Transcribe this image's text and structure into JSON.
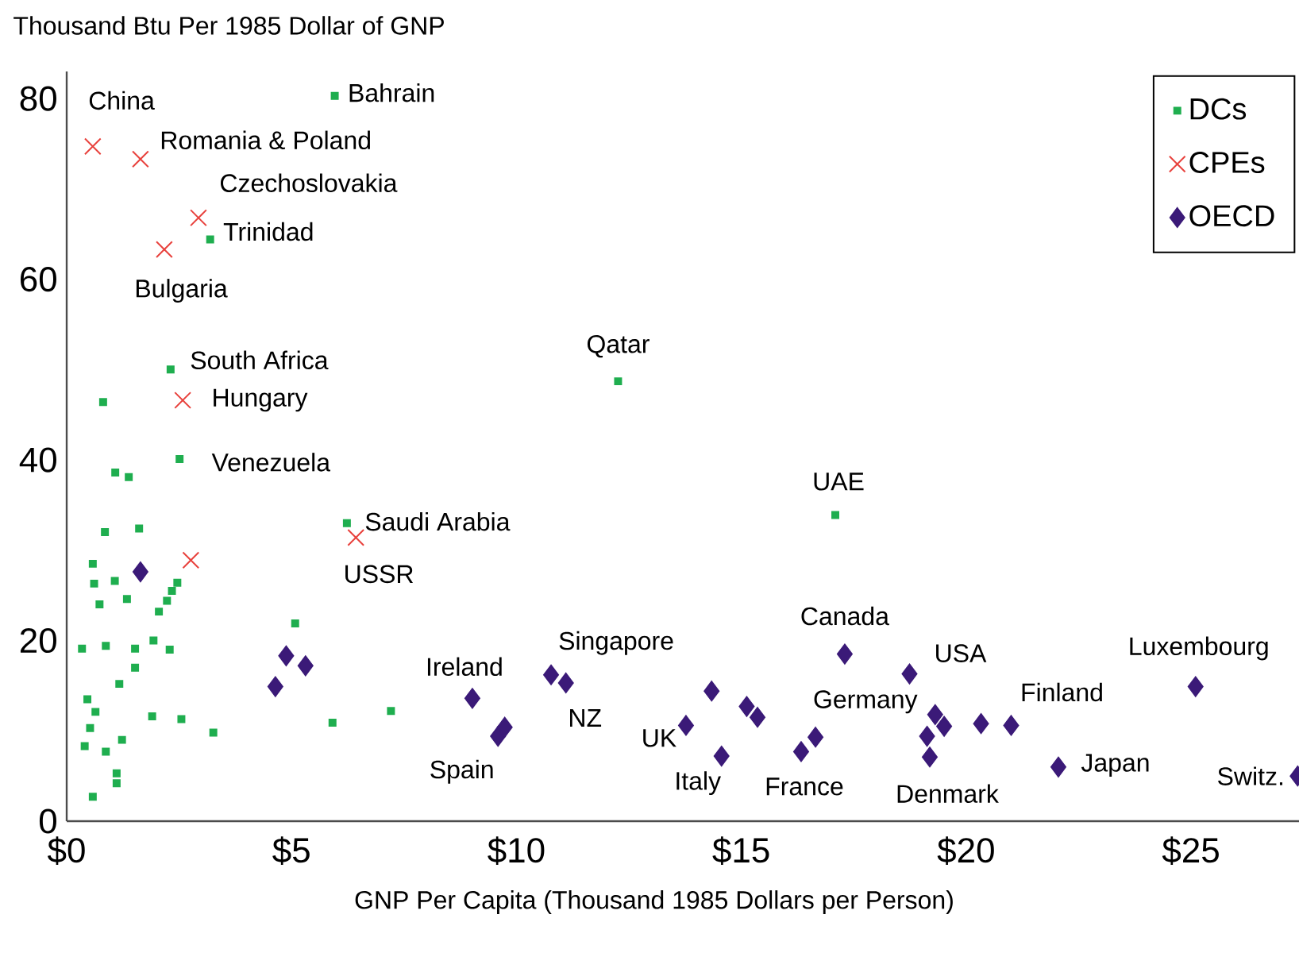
{
  "chart_data": {
    "type": "scatter",
    "ylabel": "Thousand Btu Per 1985 Dollar of GNP",
    "xlabel": "GNP Per Capita (Thousand 1985 Dollars per Person)",
    "xlim": [
      0,
      27.4
    ],
    "ylim": [
      0,
      83
    ],
    "xticks": [
      {
        "value": 0,
        "label": "$0"
      },
      {
        "value": 5,
        "label": "$5"
      },
      {
        "value": 10,
        "label": "$10"
      },
      {
        "value": 15,
        "label": "$15"
      },
      {
        "value": 20,
        "label": "$20"
      },
      {
        "value": 25,
        "label": "$25"
      }
    ],
    "yticks": [
      0,
      20,
      40,
      60,
      80
    ],
    "legend": "top right",
    "series": [
      {
        "name": "DCs",
        "color": "#1fae4f",
        "marker": "square",
        "x": [
          0.81,
          1.08,
          1.38,
          2.51,
          0.85,
          1.61,
          0.58,
          0.61,
          1.07,
          0.73,
          1.34,
          2.46,
          2.34,
          2.23,
          2.05,
          0.34,
          0.87,
          1.52,
          1.93,
          2.29,
          1.52,
          1.17,
          0.46,
          0.64,
          0.52,
          0.4,
          0.87,
          1.23,
          1.11,
          1.11,
          0.58,
          1.9,
          2.55,
          3.26,
          5.08,
          5.91,
          7.21,
          6.23,
          5.96,
          3.19,
          2.31,
          12.26,
          17.09
        ],
        "values": [
          46.4,
          38.6,
          38.1,
          40.1,
          32.0,
          32.4,
          28.5,
          26.3,
          26.6,
          24.0,
          24.6,
          26.4,
          25.5,
          24.4,
          23.2,
          19.1,
          19.4,
          19.1,
          20.0,
          19.0,
          17.0,
          15.2,
          13.5,
          12.1,
          10.3,
          8.3,
          7.7,
          9.0,
          5.3,
          4.2,
          2.7,
          11.6,
          11.3,
          9.8,
          21.9,
          10.9,
          12.2,
          33.0,
          80.3,
          64.4,
          50.0,
          48.7,
          33.9
        ]
      },
      {
        "name": "CPEs",
        "color": "#e8413c",
        "marker": "cross",
        "x": [
          0.58,
          1.64,
          2.93,
          2.17,
          2.58,
          2.76,
          6.43
        ],
        "values": [
          74.7,
          73.3,
          66.8,
          63.3,
          46.6,
          28.9,
          31.4
        ]
      },
      {
        "name": "OECD",
        "color": "#3b1a78",
        "marker": "diamond",
        "x": [
          1.64,
          4.64,
          4.88,
          5.31,
          9.02,
          9.59,
          9.74,
          10.77,
          11.1,
          13.77,
          14.34,
          14.56,
          15.12,
          15.36,
          16.33,
          16.65,
          17.3,
          18.74,
          19.31,
          19.51,
          19.13,
          19.19,
          20.33,
          21.0,
          22.05,
          25.1,
          27.37
        ],
        "values": [
          27.6,
          14.9,
          18.3,
          17.2,
          13.6,
          9.4,
          10.4,
          16.2,
          15.3,
          10.6,
          14.4,
          7.2,
          12.7,
          11.5,
          7.7,
          9.3,
          18.5,
          16.3,
          11.8,
          10.5,
          9.4,
          7.1,
          10.8,
          10.6,
          6.0,
          14.9,
          5.0
        ]
      }
    ],
    "annotations": [
      {
        "text": "China",
        "x": 0.58,
        "y": 74.7
      },
      {
        "text": "Romania & Poland",
        "x": 1.64,
        "y": 73.3
      },
      {
        "text": "Czechoslovakia",
        "x": 2.93,
        "y": 66.8
      },
      {
        "text": "Trinidad",
        "x": 3.19,
        "y": 64.4
      },
      {
        "text": "Bulgaria",
        "x": 2.17,
        "y": 63.3
      },
      {
        "text": "Bahrain",
        "x": 5.96,
        "y": 80.3
      },
      {
        "text": "South Africa",
        "x": 2.31,
        "y": 50.0
      },
      {
        "text": "Hungary",
        "x": 2.58,
        "y": 46.6
      },
      {
        "text": "Venezuela",
        "x": 2.51,
        "y": 40.1
      },
      {
        "text": "Saudi Arabia",
        "x": 6.23,
        "y": 33.0
      },
      {
        "text": "USSR",
        "x": 6.43,
        "y": 31.4
      },
      {
        "text": "Qatar",
        "x": 12.26,
        "y": 48.7
      },
      {
        "text": "UAE",
        "x": 17.09,
        "y": 33.9
      },
      {
        "text": "Ireland",
        "x": 9.02,
        "y": 13.6
      },
      {
        "text": "Spain",
        "x": 9.74,
        "y": 10.4
      },
      {
        "text": "Singapore",
        "x": 10.77,
        "y": 16.2
      },
      {
        "text": "NZ",
        "x": 11.1,
        "y": 15.3
      },
      {
        "text": "UK",
        "x": 13.77,
        "y": 10.6
      },
      {
        "text": "Italy",
        "x": 14.56,
        "y": 7.2
      },
      {
        "text": "France",
        "x": 16.33,
        "y": 7.7
      },
      {
        "text": "Canada",
        "x": 17.3,
        "y": 18.5
      },
      {
        "text": "USA",
        "x": 18.74,
        "y": 16.3
      },
      {
        "text": "Germany",
        "x": 19.31,
        "y": 11.8
      },
      {
        "text": "Denmark",
        "x": 19.19,
        "y": 7.1
      },
      {
        "text": "Finland",
        "x": 21.0,
        "y": 10.6
      },
      {
        "text": "Japan",
        "x": 22.05,
        "y": 6.0
      },
      {
        "text": "Luxembourg",
        "x": 25.1,
        "y": 14.9
      },
      {
        "text": "Switz.",
        "x": 27.37,
        "y": 5.0
      }
    ]
  }
}
